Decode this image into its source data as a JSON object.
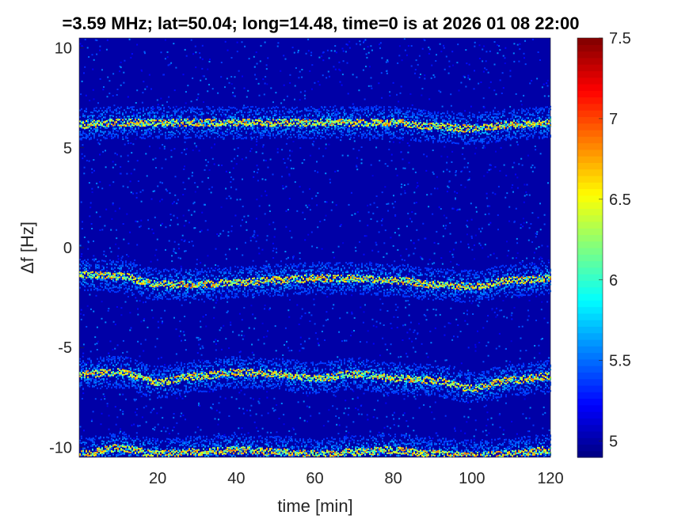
{
  "chart_data": {
    "type": "heatmap",
    "title": "=3.59 MHz;  lat=50.04; long=14.48, time=0 is at 2026 01 08 22:00",
    "xlabel": "time [min]",
    "ylabel": "Δf [Hz]",
    "xlim": [
      0,
      120
    ],
    "ylim": [
      -10.5,
      10.5
    ],
    "x_ticks": [
      20,
      40,
      60,
      80,
      100,
      120
    ],
    "x_tick_labels": [
      "20",
      "40",
      "60",
      "80",
      "100",
      "120"
    ],
    "y_ticks": [
      -10,
      -5,
      0,
      5,
      10
    ],
    "y_tick_labels": [
      "-10",
      "-5",
      "0",
      "5",
      "10"
    ],
    "colorbar": {
      "range": [
        4.9,
        7.5
      ],
      "ticks": [
        5,
        5.5,
        6,
        6.5,
        7,
        7.5
      ],
      "tick_labels": [
        "5",
        "5.5",
        "6",
        "6.5",
        "7",
        "7.5"
      ],
      "colormap": "jet"
    },
    "background_value": 5.0,
    "traces": [
      {
        "x": [
          0,
          10,
          20,
          30,
          40,
          50,
          60,
          70,
          80,
          90,
          100,
          110,
          120
        ],
        "y": [
          6.2,
          6.3,
          6.3,
          6.3,
          6.3,
          6.3,
          6.3,
          6.3,
          6.3,
          6.1,
          6.0,
          6.2,
          6.3
        ]
      },
      {
        "x": [
          0,
          10,
          20,
          30,
          40,
          50,
          60,
          70,
          80,
          90,
          100,
          110,
          120
        ],
        "y": [
          -1.3,
          -1.4,
          -1.8,
          -1.8,
          -1.7,
          -1.6,
          -1.5,
          -1.5,
          -1.6,
          -1.8,
          -1.9,
          -1.6,
          -1.5
        ]
      },
      {
        "x": [
          0,
          10,
          20,
          30,
          40,
          50,
          60,
          70,
          80,
          90,
          100,
          110,
          120
        ],
        "y": [
          -6.3,
          -6.2,
          -6.7,
          -6.4,
          -6.2,
          -6.3,
          -6.5,
          -6.3,
          -6.5,
          -6.6,
          -7.0,
          -6.6,
          -6.4
        ]
      },
      {
        "x": [
          0,
          10,
          20,
          30,
          40,
          50,
          60,
          70,
          80,
          90,
          100,
          110,
          120
        ],
        "y": [
          -10.3,
          -10.0,
          -10.3,
          -10.2,
          -10.1,
          -10.2,
          -10.3,
          -10.2,
          -10.1,
          -10.3,
          -10.4,
          -10.3,
          -10.1
        ]
      }
    ]
  }
}
